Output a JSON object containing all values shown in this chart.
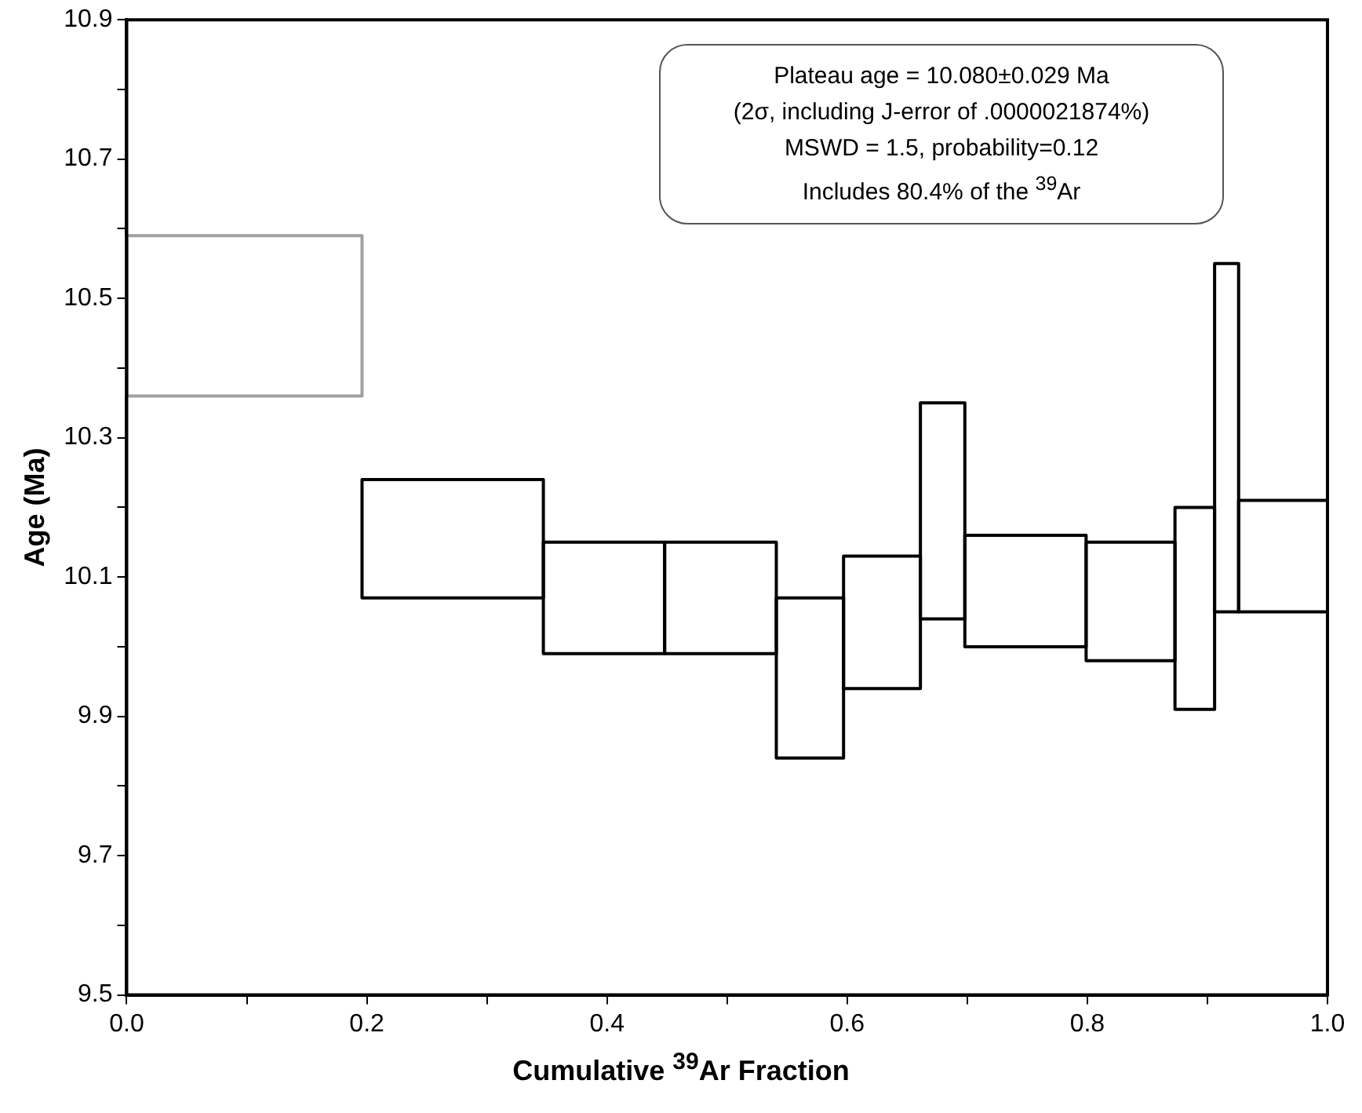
{
  "chart_data": {
    "type": "histogram",
    "xlabel": "Cumulative $^{39}$Ar Fraction",
    "ylabel": "Age (Ma)",
    "bins": [
      0,
      0.196,
      0.347,
      0.448,
      0.541,
      0.597,
      0.661,
      0.698,
      0.799,
      0.873,
      0.906,
      0.926,
      1.0
    ],
    "base": [
      10.36,
      10.07,
      9.99,
      9.99,
      9.84,
      9.94,
      10.04,
      10.0,
      9.98,
      9.91,
      10.05,
      10.05
    ],
    "values": [
      0.23,
      0.17,
      0.16,
      0.16,
      0.23,
      0.19,
      0.31,
      0.16,
      0.17,
      0.29,
      0.5,
      0.16
    ],
    "colors": [
      "#a0a0a0",
      "#000000",
      "#000000",
      "#000000",
      "#000000",
      "#000000",
      "#000000",
      "#000000",
      "#000000",
      "#000000",
      "#000000",
      "#000000"
    ],
    "xlim": [
      0,
      1
    ],
    "xticks": [
      {
        "value": 0,
        "label": "0.0"
      },
      {
        "value": 0.1,
        "label": null
      },
      0.2,
      {
        "value": 0.3,
        "label": null
      },
      0.4,
      {
        "value": 0.5,
        "label": null
      },
      0.6,
      {
        "value": 0.7,
        "label": null
      },
      0.8,
      {
        "value": 0.9,
        "label": null
      },
      {
        "value": 1,
        "label": "1.0"
      }
    ],
    "ylim": [
      9.5,
      10.9
    ],
    "yticks": [
      9.5,
      {
        "value": 9.6,
        "label": null
      },
      9.7,
      {
        "value": 9.8,
        "label": null
      },
      9.9,
      {
        "value": 10.0,
        "label": null
      },
      10.1,
      {
        "value": 10.2,
        "label": null
      },
      10.3,
      {
        "value": 10.4,
        "label": null
      },
      10.5,
      {
        "value": 10.6,
        "label": null
      },
      10.7,
      {
        "value": 10.8,
        "label": null
      },
      10.9
    ],
    "annotations": [
      "Plateau age = 10.080±0.029 Ma",
      "(2σ, including J-error of .0000021874%)",
      "MSWD = 1.5, probability=0.12",
      "Includes 80.4% of the $^{39}$Ar"
    ]
  }
}
